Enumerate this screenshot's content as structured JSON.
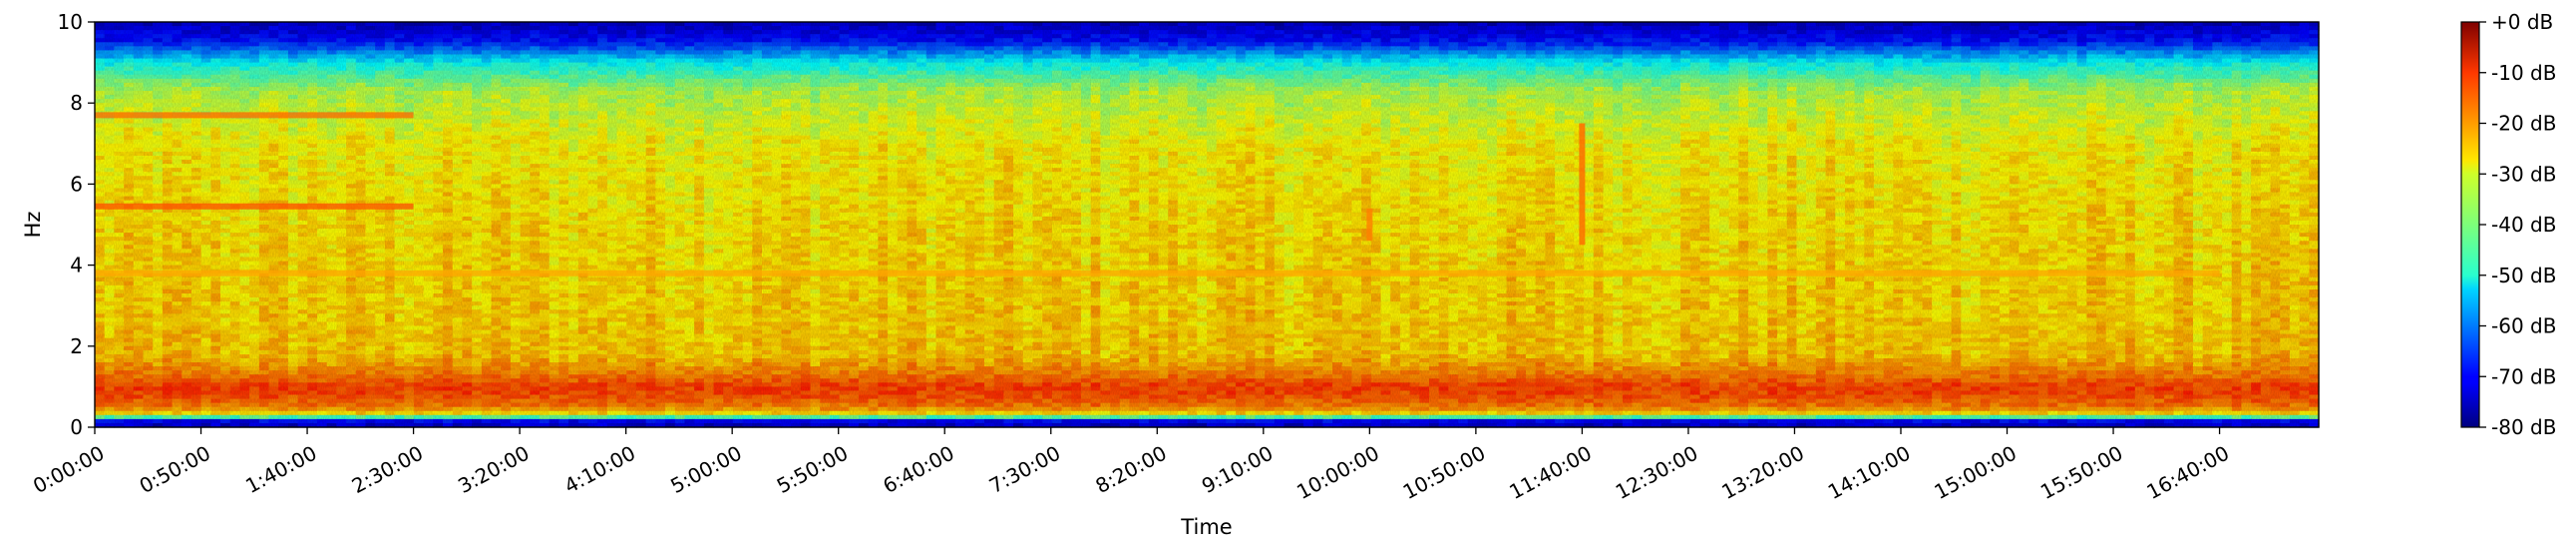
{
  "chart_data": {
    "type": "heatmap",
    "xlabel": "Time",
    "ylabel": "Hz",
    "x_tick_labels": [
      "0:00:00",
      "0:50:00",
      "1:40:00",
      "2:30:00",
      "3:20:00",
      "4:10:00",
      "5:00:00",
      "5:50:00",
      "6:40:00",
      "7:30:00",
      "8:20:00",
      "9:10:00",
      "10:00:00",
      "10:50:00",
      "11:40:00",
      "12:30:00",
      "13:20:00",
      "14:10:00",
      "15:00:00",
      "15:50:00",
      "16:40:00"
    ],
    "x_tick_seconds": [
      0,
      3000,
      6000,
      9000,
      12000,
      15000,
      18000,
      21000,
      24000,
      27000,
      30000,
      33000,
      36000,
      39000,
      42000,
      45000,
      48000,
      51000,
      54000,
      57000,
      60000
    ],
    "xlim_seconds": [
      0,
      62800
    ],
    "y_ticks": [
      0,
      2,
      4,
      6,
      8,
      10
    ],
    "ylim": [
      0,
      10
    ],
    "colorbar": {
      "label_ticks": [
        "+0 dB",
        "-10 dB",
        "-20 dB",
        "-30 dB",
        "-40 dB",
        "-50 dB",
        "-60 dB",
        "-70 dB",
        "-80 dB"
      ],
      "range_db": [
        -80,
        0
      ],
      "colormap": "jet"
    },
    "spectral_profile_db": [
      {
        "hz": 0.0,
        "db": -75
      },
      {
        "hz": 0.15,
        "db": -70
      },
      {
        "hz": 0.3,
        "db": -30
      },
      {
        "hz": 0.5,
        "db": -20
      },
      {
        "hz": 0.8,
        "db": -16
      },
      {
        "hz": 1.0,
        "db": -15
      },
      {
        "hz": 1.3,
        "db": -20
      },
      {
        "hz": 1.8,
        "db": -26
      },
      {
        "hz": 3.0,
        "db": -27
      },
      {
        "hz": 5.0,
        "db": -28
      },
      {
        "hz": 7.0,
        "db": -30
      },
      {
        "hz": 8.3,
        "db": -36
      },
      {
        "hz": 9.0,
        "db": -50
      },
      {
        "hz": 9.5,
        "db": -68
      },
      {
        "hz": 10.0,
        "db": -75
      }
    ],
    "features": [
      {
        "kind": "band",
        "hz": 7.7,
        "from": "0:00:00",
        "to": "2:30:00",
        "db": -18
      },
      {
        "kind": "band",
        "hz": 5.45,
        "from": "0:00:00",
        "to": "2:30:00",
        "db": -16
      },
      {
        "kind": "band",
        "hz": 3.8,
        "from": "0:00:00",
        "to": "16:40:00",
        "db": -23
      },
      {
        "kind": "burst",
        "at": "11:40:00",
        "hz_from": 4.5,
        "hz_to": 7.5,
        "db": -18
      },
      {
        "kind": "burst",
        "at": "10:00:00",
        "hz_from": 4.6,
        "hz_to": 5.4,
        "db": -20
      }
    ]
  }
}
